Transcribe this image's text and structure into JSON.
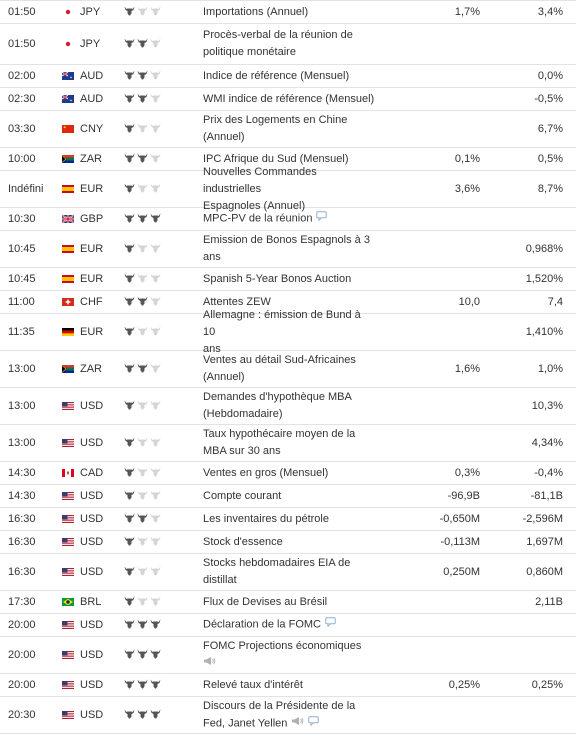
{
  "colors": {
    "border": "#e3e3e3",
    "text": "#333333",
    "bull_active": "#555555",
    "bull_inactive": "#d4d4d4",
    "icon": "#8fb0cc"
  },
  "events": [
    {
      "time": "01:50",
      "flag": "jp",
      "currency": "JPY",
      "importance": 1,
      "lines": [
        "Importations (Annuel)"
      ],
      "actual": "1,7%",
      "forecast": "3,4%",
      "previous": "",
      "icons": [],
      "h": 23
    },
    {
      "time": "01:50",
      "flag": "jp",
      "currency": "JPY",
      "importance": 2,
      "lines": [
        "Procès-verbal de la réunion de",
        "politique monétaire"
      ],
      "actual": "",
      "forecast": "",
      "previous": "",
      "icons": [],
      "h": 41
    },
    {
      "time": "02:00",
      "flag": "au",
      "currency": "AUD",
      "importance": 2,
      "lines": [
        "Indice de référence (Mensuel)"
      ],
      "actual": "",
      "forecast": "0,0%",
      "previous": "",
      "icons": [],
      "h": 23
    },
    {
      "time": "02:30",
      "flag": "au",
      "currency": "AUD",
      "importance": 2,
      "lines": [
        "WMI indice de référence (Mensuel)"
      ],
      "actual": "",
      "forecast": "-0,5%",
      "previous": "",
      "icons": [],
      "h": 23
    },
    {
      "time": "03:30",
      "flag": "cn",
      "currency": "CNY",
      "importance": 1,
      "lines": [
        "Prix des Logements en Chine",
        "(Annuel)"
      ],
      "actual": "",
      "forecast": "6,7%",
      "previous": "",
      "icons": [],
      "h": 37
    },
    {
      "time": "10:00",
      "flag": "za",
      "currency": "ZAR",
      "importance": 2,
      "lines": [
        "IPC Afrique du Sud (Mensuel)"
      ],
      "actual": "0,1%",
      "forecast": "0,5%",
      "previous": "",
      "icons": [],
      "h": 23
    },
    {
      "time": "Indéfini",
      "flag": "es",
      "currency": "EUR",
      "importance": 1,
      "lines": [
        "Nouvelles Commandes industrielles",
        "Espagnoles (Annuel)"
      ],
      "actual": "3,6%",
      "forecast": "8,7%",
      "previous": "",
      "icons": [],
      "h": 37
    },
    {
      "time": "10:30",
      "flag": "gb",
      "currency": "GBP",
      "importance": 3,
      "lines": [
        "MPC-PV de la réunion"
      ],
      "actual": "",
      "forecast": "",
      "previous": "",
      "icons": [
        "speech"
      ],
      "h": 23
    },
    {
      "time": "10:45",
      "flag": "es",
      "currency": "EUR",
      "importance": 1,
      "lines": [
        "Emission de Bonos Espagnols à 3",
        "ans"
      ],
      "actual": "",
      "forecast": "",
      "previous": "0,968%",
      "icons": [],
      "h": 37
    },
    {
      "time": "10:45",
      "flag": "es",
      "currency": "EUR",
      "importance": 1,
      "lines": [
        "Spanish 5-Year Bonos Auction"
      ],
      "actual": "",
      "forecast": "",
      "previous": "1,520%",
      "icons": [],
      "h": 23
    },
    {
      "time": "11:00",
      "flag": "ch",
      "currency": "CHF",
      "importance": 2,
      "lines": [
        "Attentes ZEW"
      ],
      "actual": "10,0",
      "forecast": "7,4",
      "previous": "",
      "icons": [],
      "h": 23
    },
    {
      "time": "11:35",
      "flag": "de",
      "currency": "EUR",
      "importance": 1,
      "lines": [
        "Allemagne : émission de Bund à 10",
        "ans"
      ],
      "actual": "",
      "forecast": "",
      "previous": "1,410%",
      "icons": [],
      "h": 37
    },
    {
      "time": "13:00",
      "flag": "za",
      "currency": "ZAR",
      "importance": 2,
      "lines": [
        "Ventes au détail Sud-Africaines",
        "(Annuel)"
      ],
      "actual": "1,6%",
      "forecast": "1,0%",
      "previous": "",
      "icons": [],
      "h": 37
    },
    {
      "time": "13:00",
      "flag": "us",
      "currency": "USD",
      "importance": 1,
      "lines": [
        "Demandes d'hypothèque MBA",
        "(Hebdomadaire)"
      ],
      "actual": "",
      "forecast": "10,3%",
      "previous": "",
      "icons": [],
      "h": 37
    },
    {
      "time": "13:00",
      "flag": "us",
      "currency": "USD",
      "importance": 1,
      "lines": [
        "Taux hypothécaire moyen de la",
        "MBA sur 30 ans"
      ],
      "actual": "",
      "forecast": "4,34%",
      "previous": "",
      "icons": [],
      "h": 37
    },
    {
      "time": "14:30",
      "flag": "ca",
      "currency": "CAD",
      "importance": 1,
      "lines": [
        "Ventes en gros (Mensuel)"
      ],
      "actual": "0,3%",
      "forecast": "-0,4%",
      "previous": "",
      "icons": [],
      "h": 23
    },
    {
      "time": "14:30",
      "flag": "us",
      "currency": "USD",
      "importance": 1,
      "lines": [
        "Compte courant"
      ],
      "actual": "-96,9B",
      "forecast": "-81,1B",
      "previous": "",
      "icons": [],
      "h": 23
    },
    {
      "time": "16:30",
      "flag": "us",
      "currency": "USD",
      "importance": 2,
      "lines": [
        "Les inventaires du pétrole"
      ],
      "actual": "-0,650M",
      "forecast": "-2,596M",
      "previous": "",
      "icons": [],
      "h": 23
    },
    {
      "time": "16:30",
      "flag": "us",
      "currency": "USD",
      "importance": 1,
      "lines": [
        "Stock d'essence"
      ],
      "actual": "-0,113M",
      "forecast": "1,697M",
      "previous": "",
      "icons": [],
      "h": 23
    },
    {
      "time": "16:30",
      "flag": "us",
      "currency": "USD",
      "importance": 1,
      "lines": [
        "Stocks hebdomadaires EIA de",
        "distillat"
      ],
      "actual": "0,250M",
      "forecast": "0,860M",
      "previous": "",
      "icons": [],
      "h": 37
    },
    {
      "time": "17:30",
      "flag": "br",
      "currency": "BRL",
      "importance": 1,
      "lines": [
        "Flux de Devises au Brésil"
      ],
      "actual": "",
      "forecast": "2,11B",
      "previous": "",
      "icons": [],
      "h": 23
    },
    {
      "time": "20:00",
      "flag": "us",
      "currency": "USD",
      "importance": 3,
      "lines": [
        "Déclaration de la FOMC"
      ],
      "actual": "",
      "forecast": "",
      "previous": "",
      "icons": [
        "speech"
      ],
      "h": 23
    },
    {
      "time": "20:00",
      "flag": "us",
      "currency": "USD",
      "importance": 3,
      "lines": [
        "FOMC Projections économiques"
      ],
      "actual": "",
      "forecast": "",
      "previous": "",
      "icons": [
        "megaphone"
      ],
      "h": 37,
      "iconline": true
    },
    {
      "time": "20:00",
      "flag": "us",
      "currency": "USD",
      "importance": 3,
      "lines": [
        "Relevé taux d'intérêt"
      ],
      "actual": "0,25%",
      "forecast": "0,25%",
      "previous": "",
      "icons": [],
      "h": 23
    },
    {
      "time": "20:30",
      "flag": "us",
      "currency": "USD",
      "importance": 3,
      "lines": [
        "Discours de la Présidente de la",
        "Fed, Janet Yellen"
      ],
      "actual": "",
      "forecast": "",
      "previous": "",
      "icons": [
        "megaphone",
        "speech"
      ],
      "h": 37
    }
  ]
}
